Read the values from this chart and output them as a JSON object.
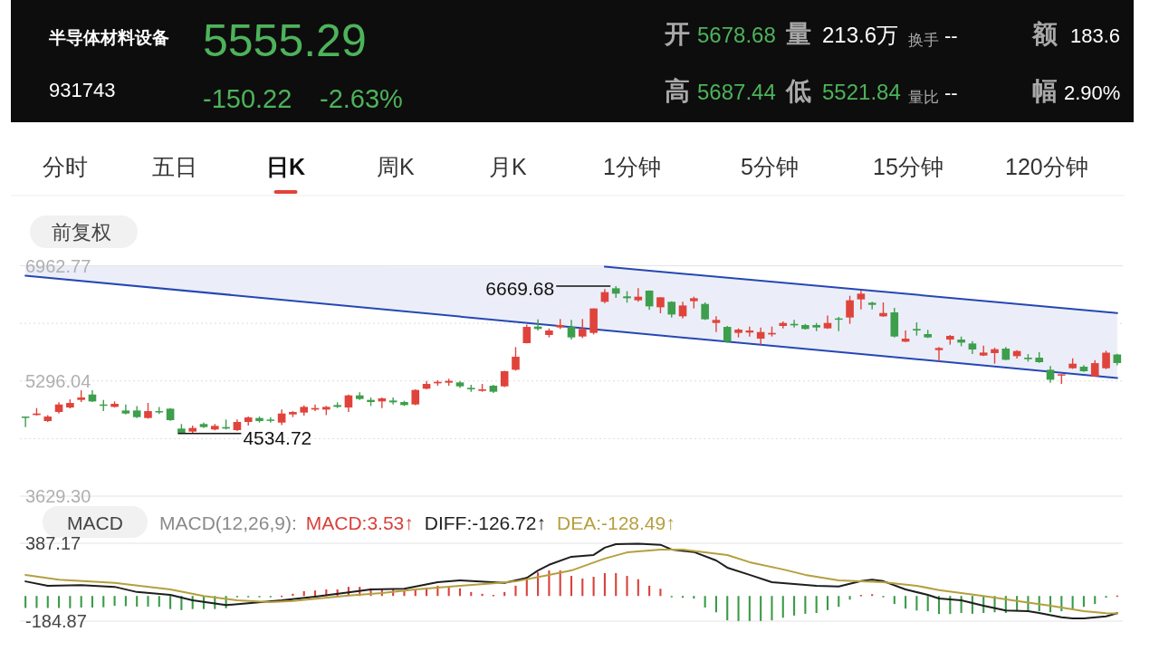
{
  "chart_data": [
    {
      "type": "candlestick",
      "title": "半导体材料设备",
      "categories": [
        null,
        null,
        null,
        null,
        null,
        null,
        null,
        null,
        null,
        null,
        null,
        null,
        null,
        null,
        null,
        null,
        null,
        null,
        null,
        null,
        null,
        null,
        null,
        null,
        null,
        null,
        null,
        null,
        null,
        null,
        null,
        null,
        null,
        null,
        null,
        null,
        null,
        null,
        null,
        null,
        null,
        null,
        null,
        null,
        null,
        null,
        null,
        null,
        null,
        null,
        null,
        null,
        null,
        null,
        null,
        null,
        null,
        null,
        null,
        null,
        null,
        null,
        null,
        null,
        null,
        null,
        null,
        null,
        null,
        null,
        null,
        null,
        null,
        null,
        null,
        null,
        null,
        null,
        null,
        null,
        null,
        null,
        null,
        null,
        null,
        null,
        null,
        null,
        null,
        null,
        null,
        null,
        null,
        null,
        null,
        null,
        null,
        null,
        null
      ],
      "ohlc": [
        [
          4781,
          4781,
          4629,
          4768
        ],
        [
          4803,
          4904,
          4795,
          4825
        ],
        [
          4716,
          4803,
          4703,
          4781
        ],
        [
          4847,
          4987,
          4825,
          4956
        ],
        [
          4912,
          5030,
          4899,
          4978
        ],
        [
          5022,
          5161,
          4991,
          5057
        ],
        [
          5100,
          5161,
          4991,
          5000
        ],
        [
          4956,
          5022,
          4860,
          4939
        ],
        [
          4921,
          5000,
          4912,
          4965
        ],
        [
          4869,
          4956,
          4812,
          4825
        ],
        [
          4869,
          4934,
          4760,
          4773
        ],
        [
          4760,
          4978,
          4751,
          4860
        ],
        [
          4860,
          4921,
          4817,
          4843
        ],
        [
          4895,
          4904,
          4721,
          4729
        ],
        [
          4607,
          4673,
          4534.72,
          4545
        ],
        [
          4563,
          4650,
          4540,
          4616
        ],
        [
          4673,
          4694,
          4616,
          4629
        ],
        [
          4594,
          4673,
          4581,
          4646
        ],
        [
          4629,
          4738,
          4594,
          4607
        ],
        [
          4585,
          4738,
          4572,
          4703
        ],
        [
          4703,
          4781,
          4650,
          4768
        ],
        [
          4760,
          4781,
          4694,
          4716
        ],
        [
          4738,
          4773,
          4694,
          4721
        ],
        [
          4694,
          4882,
          4659,
          4825
        ],
        [
          4812,
          4860,
          4773,
          4847
        ],
        [
          4839,
          4943,
          4795,
          4921
        ],
        [
          4882,
          4956,
          4860,
          4904
        ],
        [
          4882,
          4934,
          4803,
          4921
        ],
        [
          4947,
          4987,
          4904,
          4921
        ],
        [
          4912,
          5100,
          4847,
          5087
        ],
        [
          5087,
          5131,
          5022,
          5035
        ],
        [
          5022,
          5057,
          4934,
          4991
        ],
        [
          5000,
          5057,
          4904,
          5044
        ],
        [
          5013,
          5057,
          4956,
          4987
        ],
        [
          4991,
          5009,
          4934,
          4947
        ],
        [
          4956,
          5175,
          4947,
          5166
        ],
        [
          5184,
          5297,
          5175,
          5253
        ],
        [
          5262,
          5306,
          5227,
          5284
        ],
        [
          5271,
          5328,
          5227,
          5297
        ],
        [
          5275,
          5293,
          5196,
          5218
        ],
        [
          5196,
          5240,
          5140,
          5175
        ],
        [
          5153,
          5253,
          5140,
          5175
        ],
        [
          5227,
          5240,
          5122,
          5140
        ],
        [
          5218,
          5445,
          5209,
          5437
        ],
        [
          5458,
          5786,
          5445,
          5646
        ],
        [
          5843,
          6113,
          5838,
          6078
        ],
        [
          6083,
          6188,
          6026,
          6048
        ],
        [
          5961,
          6057,
          5926,
          6026
        ],
        [
          6070,
          6192,
          6048,
          6105
        ],
        [
          6078,
          6179,
          5895,
          5926
        ],
        [
          5939,
          6192,
          5917,
          6048
        ],
        [
          5991,
          6345,
          5969,
          6345
        ],
        [
          6441,
          6624,
          6419,
          6581
        ],
        [
          6637,
          6669.68,
          6498,
          6559
        ],
        [
          6520,
          6594,
          6428,
          6493
        ],
        [
          6463,
          6637,
          6441,
          6515
        ],
        [
          6603,
          6607,
          6323,
          6375
        ],
        [
          6362,
          6506,
          6275,
          6506
        ],
        [
          6441,
          6450,
          6214,
          6257
        ],
        [
          6231,
          6441,
          6201,
          6388
        ],
        [
          6450,
          6515,
          6345,
          6493
        ],
        [
          6410,
          6432,
          6179,
          6188
        ],
        [
          6135,
          6231,
          6004,
          6179
        ],
        [
          6078,
          6092,
          5851,
          5864
        ],
        [
          5991,
          6057,
          5926,
          6039
        ],
        [
          5996,
          6083,
          5939,
          6026
        ],
        [
          5908,
          6070,
          5821,
          6004
        ],
        [
          5969,
          6083,
          5939,
          5991
        ],
        [
          6092,
          6157,
          6057,
          6135
        ],
        [
          6122,
          6179,
          6070,
          6100
        ],
        [
          6105,
          6122,
          6039,
          6048
        ],
        [
          6105,
          6135,
          6017,
          6070
        ],
        [
          6057,
          6244,
          6048,
          6135
        ],
        [
          6201,
          6223,
          6017,
          6188
        ],
        [
          6214,
          6528,
          6122,
          6463
        ],
        [
          6476,
          6607,
          6332,
          6559
        ],
        [
          6428,
          6441,
          6332,
          6397
        ],
        [
          6231,
          6432,
          6223,
          6279
        ],
        [
          6288,
          6354,
          5926,
          5939
        ],
        [
          5864,
          6026,
          5860,
          5908
        ],
        [
          6048,
          6144,
          5952,
          6026
        ],
        [
          5974,
          6035,
          5917,
          5926
        ],
        [
          5742,
          5786,
          5581,
          5773
        ],
        [
          5895,
          5961,
          5821,
          5948
        ],
        [
          5895,
          5939,
          5799,
          5851
        ],
        [
          5838,
          5873,
          5685,
          5751
        ],
        [
          5664,
          5808,
          5655,
          5707
        ],
        [
          5699,
          5777,
          5546,
          5755
        ],
        [
          5764,
          5786,
          5598,
          5602
        ],
        [
          5655,
          5742,
          5620,
          5729
        ],
        [
          5633,
          5685,
          5576,
          5611
        ],
        [
          5633,
          5712,
          5559,
          5568
        ],
        [
          5458,
          5511,
          5271,
          5314
        ],
        [
          5384,
          5393,
          5253,
          5393
        ],
        [
          5480,
          5624,
          5471,
          5546
        ],
        [
          5502,
          5524,
          5428,
          5437
        ],
        [
          5362,
          5598,
          5358,
          5554
        ],
        [
          5480,
          5733,
          5467,
          5705
        ],
        [
          5678.68,
          5687.44,
          5521.84,
          5555.29
        ]
      ],
      "series": [
        {
          "type": "line",
          "color": "#2547b3",
          "values": [
            6820,
            null,
            null,
            null,
            null,
            null,
            null,
            null,
            null,
            null,
            null,
            null,
            null,
            null,
            null,
            null,
            null,
            null,
            null,
            null,
            null,
            null,
            null,
            null,
            null,
            null,
            null,
            null,
            null,
            null,
            null,
            null,
            null,
            null,
            null,
            null,
            null,
            null,
            null,
            null,
            null,
            null,
            null,
            null,
            null,
            null,
            null,
            null,
            null,
            null,
            null,
            null,
            6030,
            null,
            null,
            null,
            null,
            null,
            null,
            null,
            null,
            null,
            null,
            null,
            null,
            null,
            null,
            null,
            null,
            null,
            null,
            null,
            null,
            null,
            null,
            null,
            null,
            null,
            null,
            null,
            null,
            null,
            null,
            null,
            null,
            null,
            null,
            null,
            null,
            null,
            null,
            null,
            null,
            null,
            null,
            null,
            null,
            null,
            5340
          ],
          "lower": [
            6820,
            null,
            null,
            null,
            null,
            null,
            null,
            null,
            null,
            null,
            null,
            null,
            null,
            null,
            null,
            null,
            null,
            null,
            null,
            null,
            null,
            null,
            null,
            null,
            null,
            null,
            null,
            null,
            null,
            null,
            null,
            null,
            null,
            null,
            null,
            null,
            null,
            null,
            null,
            null,
            null,
            null,
            null,
            null,
            null,
            null,
            null,
            null,
            null,
            null,
            null,
            null,
            6030,
            null,
            null,
            null,
            null,
            null,
            null,
            null,
            null,
            null,
            null,
            null,
            null,
            null,
            null,
            null,
            null,
            null,
            null,
            null,
            null,
            null,
            null,
            null,
            null,
            null,
            null,
            null,
            null,
            null,
            null,
            null,
            null,
            null,
            null,
            null,
            null,
            null,
            null,
            null,
            null,
            null,
            null,
            null,
            null,
            null,
            5340
          ],
          "upper": [
            6960,
            null,
            null,
            null,
            null,
            null,
            null,
            null,
            null,
            null,
            null,
            null,
            null,
            null,
            null,
            null,
            null,
            null,
            null,
            null,
            null,
            null,
            null,
            null,
            null,
            null,
            null,
            null,
            null,
            null,
            null,
            null,
            null,
            null,
            null,
            null,
            null,
            null,
            null,
            null,
            null,
            null,
            null,
            null,
            null,
            null,
            null,
            null,
            null,
            null,
            null,
            null,
            6950,
            null,
            null,
            null,
            null,
            null,
            null,
            null,
            null,
            null,
            null,
            null,
            null,
            null,
            null,
            null,
            null,
            null,
            null,
            null,
            null,
            null,
            null,
            null,
            null,
            null,
            null,
            null,
            null,
            null,
            null,
            null,
            null,
            null,
            null,
            null,
            null,
            null,
            null,
            null,
            null,
            null,
            null,
            null,
            null,
            null,
            6280
          ]
        },
        {
          "type": "line",
          "color": "#2547b3",
          "values": [
            null,
            null,
            null,
            null,
            null,
            null,
            null,
            null,
            null,
            null,
            null,
            null,
            null,
            null,
            null,
            null,
            null,
            null,
            null,
            null,
            null,
            null,
            null,
            null,
            null,
            null,
            null,
            null,
            null,
            null,
            null,
            null,
            null,
            null,
            null,
            null,
            null,
            null,
            null,
            null,
            null,
            null,
            null,
            null,
            null,
            null,
            null,
            null,
            null,
            null,
            null,
            null,
            6950,
            null,
            null,
            null,
            null,
            null,
            null,
            null,
            null,
            null,
            null,
            null,
            null,
            null,
            null,
            null,
            null,
            null,
            null,
            null,
            null,
            null,
            null,
            null,
            null,
            null,
            null,
            null,
            null,
            null,
            null,
            null,
            null,
            null,
            null,
            null,
            null,
            null,
            null,
            null,
            null,
            null,
            null,
            null,
            null,
            null,
            6280
          ]
        }
      ],
      "ylim": [
        3629.3,
        6962.77
      ],
      "yticks": [
        {
          "value": 3629.3,
          "label": "3629.30"
        },
        {
          "value": 4462.67,
          "label": null
        },
        5296.04,
        {
          "value": 6129.4,
          "label": null
        },
        6962.77
      ],
      "grid": "y",
      "annotations": [
        "931743",
        "5555.29",
        "-150.22",
        "-2.63%",
        "开",
        "5678.68",
        "量",
        "213.6万",
        "换手",
        "--",
        "额",
        "183.6",
        "高",
        "5687.44",
        "低",
        "5521.84",
        "量比",
        "--",
        "幅",
        "2.90%",
        "分时",
        "五日",
        "日K",
        "周K",
        "月K",
        "1分钟",
        "5分钟",
        "15分钟",
        "120分钟",
        "前复权",
        "6669.68",
        "4534.72"
      ]
    },
    {
      "type": "bar",
      "categories": [
        null,
        null,
        null,
        null,
        null,
        null,
        null,
        null,
        null,
        null,
        null,
        null,
        null,
        null,
        null,
        null,
        null,
        null,
        null,
        null,
        null,
        null,
        null,
        null,
        null,
        null,
        null,
        null,
        null,
        null,
        null,
        null,
        null,
        null,
        null,
        null,
        null,
        null,
        null,
        null,
        null,
        null,
        null,
        null,
        null,
        null,
        null,
        null,
        null,
        null,
        null,
        null,
        null,
        null,
        null,
        null,
        null,
        null,
        null,
        null,
        null,
        null,
        null,
        null,
        null,
        null,
        null,
        null,
        null,
        null,
        null,
        null,
        null,
        null,
        null,
        null,
        null,
        null,
        null,
        null,
        null,
        null,
        null,
        null,
        null,
        null,
        null,
        null,
        null,
        null,
        null,
        null,
        null,
        null,
        null,
        null,
        null,
        null,
        null
      ],
      "legend_title": "MACD(12,26,9):",
      "legend": "top left",
      "series": [
        {
          "name": "MACD:3.53↑",
          "color": "#d9413b",
          "values": [
            -88,
            -88,
            -88,
            -88,
            -90,
            -85,
            -85,
            -83,
            -72,
            -75,
            -78,
            -78,
            -80,
            -96,
            -104,
            -96,
            -96,
            -96,
            -90,
            -5,
            -5,
            -3,
            -2,
            2,
            16,
            35,
            40,
            48,
            48,
            67,
            67,
            56,
            48,
            48,
            35,
            43,
            61,
            75,
            69,
            56,
            29,
            16,
            8,
            29,
            75,
            141,
            173,
            187,
            187,
            147,
            128,
            141,
            168,
            168,
            147,
            123,
            75,
            53,
            -3,
            -13,
            -19,
            -85,
            -120,
            -179,
            -184,
            -184,
            -184,
            -179,
            -160,
            -144,
            -131,
            -125,
            -104,
            -80,
            -27,
            8,
            13,
            -2,
            -59,
            -93,
            -107,
            -112,
            -133,
            -133,
            -125,
            -131,
            -125,
            -120,
            -125,
            -112,
            -107,
            -112,
            -120,
            -112,
            -93,
            -80,
            -59,
            -13,
            3.53
          ],
          "colors": [
            "#3a9b48",
            "#3a9b48",
            "#3a9b48",
            "#3a9b48",
            "#3a9b48",
            "#3a9b48",
            "#3a9b48",
            "#3a9b48",
            "#3a9b48",
            "#3a9b48",
            "#3a9b48",
            "#3a9b48",
            "#3a9b48",
            "#3a9b48",
            "#3a9b48",
            "#3a9b48",
            "#3a9b48",
            "#3a9b48",
            "#3a9b48",
            "#3a9b48",
            "#3a9b48",
            "#3a9b48",
            "#3a9b48",
            "#d9413b",
            "#d9413b",
            "#d9413b",
            "#d9413b",
            "#d9413b",
            "#d9413b",
            "#d9413b",
            "#d9413b",
            "#d9413b",
            "#d9413b",
            "#d9413b",
            "#d9413b",
            "#d9413b",
            "#d9413b",
            "#d9413b",
            "#d9413b",
            "#d9413b",
            "#d9413b",
            "#d9413b",
            "#d9413b",
            "#d9413b",
            "#d9413b",
            "#d9413b",
            "#d9413b",
            "#d9413b",
            "#d9413b",
            "#d9413b",
            "#d9413b",
            "#d9413b",
            "#d9413b",
            "#d9413b",
            "#d9413b",
            "#d9413b",
            "#d9413b",
            "#d9413b",
            "#3a9b48",
            "#3a9b48",
            "#3a9b48",
            "#3a9b48",
            "#3a9b48",
            "#3a9b48",
            "#3a9b48",
            "#3a9b48",
            "#3a9b48",
            "#3a9b48",
            "#3a9b48",
            "#3a9b48",
            "#3a9b48",
            "#3a9b48",
            "#3a9b48",
            "#3a9b48",
            "#3a9b48",
            "#d9413b",
            "#d9413b",
            "#3a9b48",
            "#3a9b48",
            "#3a9b48",
            "#3a9b48",
            "#3a9b48",
            "#3a9b48",
            "#3a9b48",
            "#3a9b48",
            "#3a9b48",
            "#3a9b48",
            "#3a9b48",
            "#3a9b48",
            "#3a9b48",
            "#3a9b48",
            "#3a9b48",
            "#3a9b48",
            "#3a9b48",
            "#3a9b48",
            "#3a9b48",
            "#3a9b48",
            "#3a9b48",
            "#d9413b"
          ]
        },
        {
          "name": "DIFF:-126.72↑",
          "type": "line",
          "color": "#1e1e1e",
          "values": [
            107,
            null,
            75,
            null,
            null,
            80,
            null,
            null,
            67,
            null,
            29,
            null,
            null,
            8,
            null,
            -32,
            null,
            null,
            -67,
            null,
            -53,
            null,
            null,
            -32,
            null,
            null,
            -5,
            null,
            null,
            27,
            null,
            48,
            null,
            null,
            53,
            null,
            null,
            101,
            null,
            115,
            null,
            null,
            null,
            96,
            null,
            133,
            187,
            229,
            null,
            288,
            null,
            301,
            355,
            381,
            null,
            384,
            null,
            376,
            341,
            null,
            323,
            null,
            261,
            208,
            null,
            155,
            null,
            101,
            null,
            88,
            null,
            75,
            null,
            69,
            null,
            109,
            120,
            109,
            null,
            48,
            null,
            8,
            -19,
            null,
            -32,
            null,
            -72,
            null,
            -107,
            null,
            -112,
            -125,
            null,
            -157,
            -165,
            -165,
            null,
            -150,
            -126.72
          ]
        },
        {
          "name": "DEA:-128.49↑",
          "type": "line",
          "color": "#b59f3e",
          "values": [
            155,
            null,
            null,
            120,
            null,
            null,
            null,
            null,
            96,
            null,
            null,
            null,
            null,
            48,
            null,
            null,
            0,
            null,
            null,
            -32,
            null,
            null,
            -45,
            null,
            -37,
            null,
            null,
            null,
            null,
            3,
            null,
            null,
            21,
            null,
            null,
            48,
            null,
            null,
            null,
            75,
            null,
            null,
            93,
            null,
            107,
            null,
            null,
            155,
            null,
            187,
            null,
            null,
            275,
            null,
            320,
            null,
            null,
            341,
            null,
            341,
            null,
            null,
            null,
            301,
            null,
            248,
            null,
            null,
            195,
            null,
            155,
            null,
            null,
            115,
            null,
            107,
            null,
            101,
            null,
            null,
            75,
            null,
            43,
            null,
            null,
            null,
            0,
            null,
            null,
            -37,
            null,
            null,
            -72,
            null,
            null,
            -112,
            null,
            -126,
            -128.49
          ]
        }
      ],
      "ylim": [
        -184.87,
        387.17
      ],
      "yticks": [
        387.17,
        -184.87
      ],
      "annotations": [
        "MACD"
      ]
    }
  ]
}
